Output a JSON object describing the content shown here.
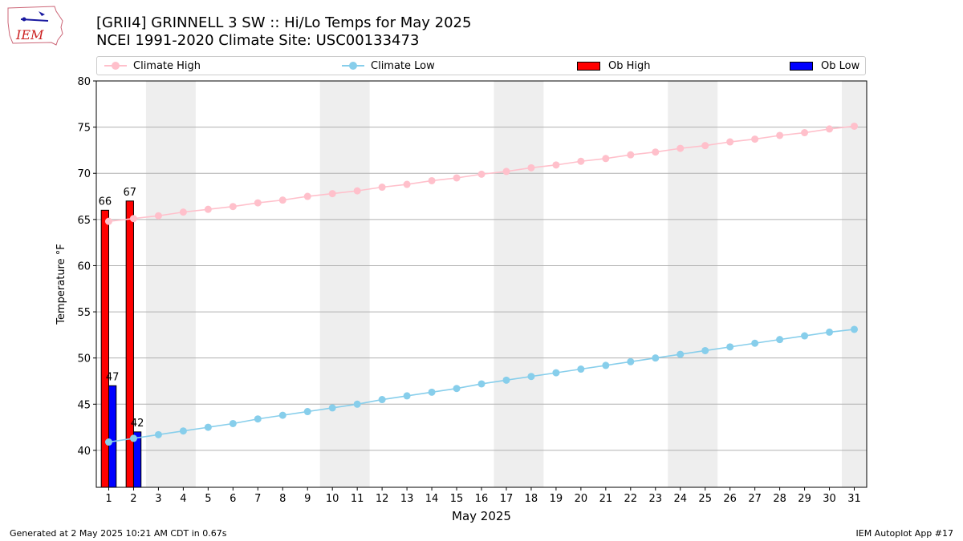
{
  "header": {
    "title_line1": "[GRII4] GRINNELL 3 SW :: Hi/Lo Temps for May 2025",
    "title_line2": "NCEI 1991-2020 Climate Site: USC00133473",
    "logo_text": "IEM"
  },
  "legend": [
    {
      "label": "Climate High",
      "kind": "line",
      "color": "#ffc0cb"
    },
    {
      "label": "Climate Low",
      "kind": "line",
      "color": "#87ceeb"
    },
    {
      "label": "Ob High",
      "kind": "bar",
      "color": "#ff0000"
    },
    {
      "label": "Ob Low",
      "kind": "bar",
      "color": "#0000ff"
    }
  ],
  "footer": {
    "generated": "Generated at 2 May 2025 10:21 AM CDT in 0.67s",
    "app": "IEM Autoplot App #17"
  },
  "chart_data": {
    "type": "bar",
    "xlabel": "May 2025",
    "ylabel": "Temperature °F",
    "ylim": [
      36,
      80
    ],
    "xlim": [
      0.5,
      31.5
    ],
    "y_ticks": [
      40,
      45,
      50,
      55,
      60,
      65,
      70,
      75,
      80
    ],
    "x": [
      1,
      2,
      3,
      4,
      5,
      6,
      7,
      8,
      9,
      10,
      11,
      12,
      13,
      14,
      15,
      16,
      17,
      18,
      19,
      20,
      21,
      22,
      23,
      24,
      25,
      26,
      27,
      28,
      29,
      30,
      31
    ],
    "grid": "horizontal",
    "weekend_shading": [
      [
        3,
        4
      ],
      [
        10,
        11
      ],
      [
        17,
        18
      ],
      [
        24,
        25
      ],
      [
        31,
        31
      ]
    ],
    "colors": {
      "shade": "#eeeeee",
      "grid": "#b0b0b0",
      "climate_high": "#ffc0cb",
      "climate_low": "#87ceeb",
      "ob_high": "#ff0000",
      "ob_low": "#0000ff"
    },
    "series": [
      {
        "name": "Climate High",
        "type": "line",
        "values": [
          64.8,
          65.1,
          65.4,
          65.8,
          66.1,
          66.4,
          66.8,
          67.1,
          67.5,
          67.8,
          68.1,
          68.5,
          68.8,
          69.2,
          69.5,
          69.9,
          70.2,
          70.6,
          70.9,
          71.3,
          71.6,
          72.0,
          72.3,
          72.7,
          73.0,
          73.4,
          73.7,
          74.1,
          74.4,
          74.8,
          75.1
        ]
      },
      {
        "name": "Climate Low",
        "type": "line",
        "values": [
          40.9,
          41.3,
          41.7,
          42.1,
          42.5,
          42.9,
          43.4,
          43.8,
          44.2,
          44.6,
          45.0,
          45.5,
          45.9,
          46.3,
          46.7,
          47.2,
          47.6,
          48.0,
          48.4,
          48.8,
          49.2,
          49.6,
          50.0,
          50.4,
          50.8,
          51.2,
          51.6,
          52.0,
          52.4,
          52.8,
          53.1
        ]
      },
      {
        "name": "Ob High",
        "type": "bar",
        "x": [
          1,
          2
        ],
        "values": [
          66,
          67
        ],
        "labels": [
          "66",
          "67"
        ]
      },
      {
        "name": "Ob Low",
        "type": "bar",
        "x": [
          1,
          2
        ],
        "values": [
          47,
          42
        ],
        "labels": [
          "47",
          "42"
        ]
      }
    ]
  }
}
